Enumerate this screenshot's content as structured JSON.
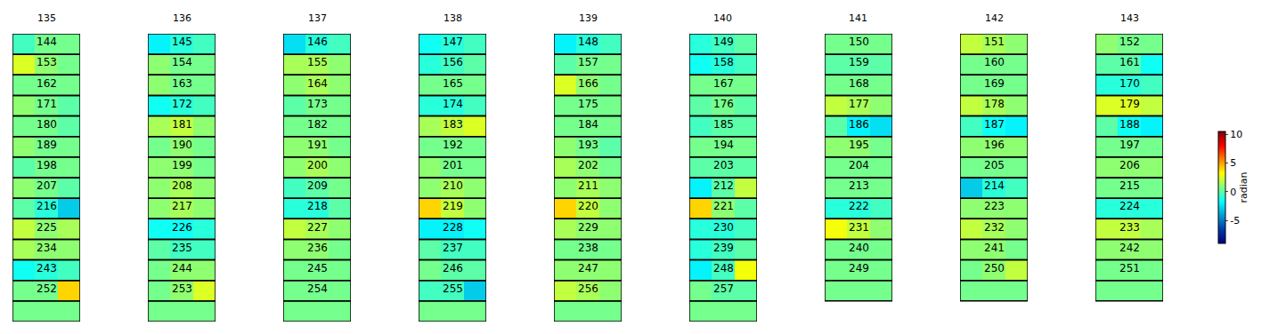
{
  "chart_data": {
    "type": "heatmap_grid",
    "color": "Jet",
    "tick_labels": false,
    "colorbar": {
      "range": [
        -9,
        10.5
      ],
      "ticks": [
        -5,
        0,
        5,
        10
      ],
      "label": "radian"
    },
    "panels": [
      {
        "title": "135",
        "labels": [
          "144",
          "153",
          "162",
          "171",
          "180",
          "189",
          "198",
          "207",
          "216",
          "225",
          "234",
          "243",
          "252",
          null
        ],
        "values": [
          [
            -0.5,
            0.5,
            0.5
          ],
          [
            2.5,
            1,
            0.5
          ],
          [
            0.5,
            0.5,
            0.5
          ],
          [
            1,
            0.5,
            0
          ],
          [
            0.5,
            0.5,
            0
          ],
          [
            1,
            0.5,
            0.5
          ],
          [
            0,
            0.5,
            0.5
          ],
          [
            1,
            0.5,
            0
          ],
          [
            0,
            -1,
            -3
          ],
          [
            2,
            1,
            1.5
          ],
          [
            1.5,
            1,
            1
          ],
          [
            -1.5,
            -1,
            -0.5
          ],
          [
            0.5,
            0.5,
            4
          ],
          [
            0.5,
            0.5,
            0.5
          ]
        ]
      },
      {
        "title": "136",
        "labels": [
          "145",
          "154",
          "163",
          "172",
          "181",
          "190",
          "199",
          "208",
          "217",
          "226",
          "235",
          "244",
          "253",
          null
        ],
        "values": [
          [
            -2,
            -1,
            -0.5
          ],
          [
            1,
            0.5,
            0.5
          ],
          [
            1,
            0.5,
            0.5
          ],
          [
            -1.5,
            -1,
            -0.5
          ],
          [
            1.5,
            2,
            1
          ],
          [
            0.5,
            1,
            0.5
          ],
          [
            1,
            1,
            0.5
          ],
          [
            1,
            1.5,
            1
          ],
          [
            1,
            1.5,
            1
          ],
          [
            -1.5,
            -1.5,
            -1
          ],
          [
            0,
            -0.5,
            -0.5
          ],
          [
            0.5,
            1,
            1
          ],
          [
            0.5,
            1,
            2.5
          ],
          [
            0.5,
            0.5,
            0.5
          ]
        ]
      },
      {
        "title": "137",
        "labels": [
          "146",
          "155",
          "164",
          "173",
          "182",
          "191",
          "200",
          "209",
          "218",
          "227",
          "236",
          "245",
          "254",
          null
        ],
        "values": [
          [
            -2.5,
            -1,
            -0.5
          ],
          [
            1.5,
            1.5,
            1
          ],
          [
            1,
            1.5,
            1
          ],
          [
            0,
            0.5,
            0.5
          ],
          [
            0.5,
            0.5,
            0.5
          ],
          [
            1,
            1,
            0.5
          ],
          [
            1,
            1.5,
            1
          ],
          [
            -0.5,
            0,
            0.5
          ],
          [
            -1,
            -1,
            0
          ],
          [
            2,
            1.5,
            1
          ],
          [
            1,
            1,
            0.5
          ],
          [
            0.5,
            0.5,
            0.5
          ],
          [
            0.5,
            0.5,
            0.5
          ],
          [
            0.5,
            0.5,
            0.5
          ]
        ]
      },
      {
        "title": "138",
        "labels": [
          "147",
          "156",
          "165",
          "174",
          "183",
          "192",
          "201",
          "210",
          "219",
          "228",
          "237",
          "246",
          "255",
          null
        ],
        "values": [
          [
            -1.5,
            -1,
            -0.5
          ],
          [
            -1,
            -0.5,
            0
          ],
          [
            0.5,
            0.5,
            0.5
          ],
          [
            -1,
            -1,
            -0.5
          ],
          [
            1.5,
            2,
            2.5
          ],
          [
            0.5,
            0.5,
            0.5
          ],
          [
            1,
            0.5,
            0.5
          ],
          [
            1,
            1.5,
            1
          ],
          [
            4,
            2,
            1
          ],
          [
            -2,
            -2,
            -1.5
          ],
          [
            0,
            -0.5,
            -0.5
          ],
          [
            0.5,
            0,
            0
          ],
          [
            -0.5,
            -0.5,
            -3
          ],
          [
            0.5,
            0.5,
            0.5
          ]
        ]
      },
      {
        "title": "139",
        "labels": [
          "148",
          "157",
          "166",
          "175",
          "184",
          "193",
          "202",
          "211",
          "220",
          "229",
          "238",
          "247",
          "256",
          null
        ],
        "values": [
          [
            -2,
            -1,
            -0.5
          ],
          [
            0,
            0.5,
            0.5
          ],
          [
            2.5,
            1,
            0.5
          ],
          [
            0.5,
            0.5,
            0.5
          ],
          [
            0.5,
            0.5,
            0.5
          ],
          [
            1,
            0.5,
            0
          ],
          [
            1.5,
            1,
            0.5
          ],
          [
            1,
            1.5,
            1
          ],
          [
            4,
            2,
            1
          ],
          [
            1.5,
            1,
            1
          ],
          [
            0.5,
            0.5,
            0.5
          ],
          [
            1,
            1,
            1
          ],
          [
            2,
            1.5,
            1
          ],
          [
            0.5,
            0.5,
            0.5
          ]
        ]
      },
      {
        "title": "140",
        "labels": [
          "149",
          "158",
          "167",
          "176",
          "185",
          "194",
          "203",
          "212",
          "221",
          "230",
          "239",
          "248",
          "257",
          null
        ],
        "values": [
          [
            -1,
            -0.5,
            0
          ],
          [
            -1.5,
            -1,
            -0.5
          ],
          [
            0.5,
            0.5,
            0.5
          ],
          [
            0,
            0.5,
            0
          ],
          [
            -0.5,
            0,
            0
          ],
          [
            0.5,
            0.5,
            0.5
          ],
          [
            0,
            0,
            0
          ],
          [
            -2,
            0,
            2
          ],
          [
            4,
            1,
            0
          ],
          [
            -1,
            -1,
            -0.5
          ],
          [
            -1,
            -0.5,
            0
          ],
          [
            -2,
            -0.5,
            3
          ],
          [
            0.5,
            0,
            0
          ],
          [
            0.5,
            0.5,
            0.5
          ]
        ]
      },
      {
        "title": "141",
        "labels": [
          "150",
          "159",
          "168",
          "177",
          "186",
          "195",
          "204",
          "213",
          "222",
          "231",
          "240",
          "249",
          null
        ],
        "values": [
          [
            0.5,
            0.5,
            0.5
          ],
          [
            0,
            0,
            0
          ],
          [
            0.5,
            0.5,
            0.5
          ],
          [
            2,
            1.5,
            1
          ],
          [
            0,
            -2,
            -2.5
          ],
          [
            1,
            1,
            0.5
          ],
          [
            0.5,
            0.5,
            0.5
          ],
          [
            0.5,
            0.5,
            0.5
          ],
          [
            -1,
            -1,
            -0.5
          ],
          [
            3,
            2,
            1
          ],
          [
            0.5,
            0.5,
            0.5
          ],
          [
            0.5,
            0.5,
            0.5
          ],
          [
            0.5,
            0.5,
            0.5
          ]
        ]
      },
      {
        "title": "142",
        "labels": [
          "151",
          "160",
          "169",
          "178",
          "187",
          "196",
          "205",
          "214",
          "223",
          "232",
          "241",
          "250",
          null
        ],
        "values": [
          [
            2,
            1.5,
            1
          ],
          [
            0.5,
            0.5,
            0.5
          ],
          [
            0.5,
            0.5,
            0.5
          ],
          [
            2,
            1.5,
            1
          ],
          [
            -0.5,
            -1.5,
            -2
          ],
          [
            1,
            1,
            1
          ],
          [
            0.5,
            0.5,
            0.5
          ],
          [
            -3,
            -1,
            -0.5
          ],
          [
            1,
            1,
            1
          ],
          [
            2,
            1.5,
            1
          ],
          [
            1,
            1,
            0.5
          ],
          [
            0.5,
            1,
            2
          ],
          [
            0.5,
            0.5,
            0.5
          ]
        ]
      },
      {
        "title": "143",
        "labels": [
          "152",
          "161",
          "170",
          "179",
          "188",
          "197",
          "206",
          "215",
          "224",
          "233",
          "242",
          "251",
          null
        ],
        "values": [
          [
            1,
            0.5,
            0.5
          ],
          [
            0,
            0,
            -1.5
          ],
          [
            -1,
            -1,
            -0.5
          ],
          [
            2.5,
            2.5,
            2
          ],
          [
            0,
            -1.5,
            -2
          ],
          [
            0.5,
            0.5,
            0.5
          ],
          [
            1,
            1,
            1
          ],
          [
            0.5,
            0.5,
            0.5
          ],
          [
            -1,
            -1,
            -1
          ],
          [
            2,
            2,
            1.5
          ],
          [
            1,
            1,
            1
          ],
          [
            0.5,
            0.5,
            0.5
          ],
          [
            0.5,
            0.5,
            0.5
          ]
        ]
      }
    ]
  }
}
